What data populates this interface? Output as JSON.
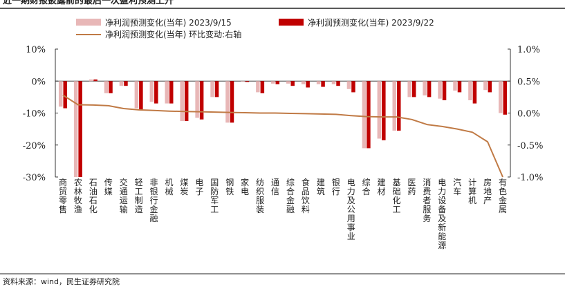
{
  "title": "近一期财报披露前的最后一次盈利预测上升",
  "source": "资料来源：wind，民生证券研究院",
  "colors": {
    "series1": "#e8b7b7",
    "series2": "#c00000",
    "line": "#c07a45",
    "axis": "#333333"
  },
  "chart_data": {
    "type": "bar",
    "categories": [
      "商贸零售",
      "农林牧渔",
      "石油石化",
      "传媒",
      "交通运输",
      "轻工制造",
      "非银行金融",
      "机械",
      "煤炭",
      "电子",
      "国防军工",
      "钢铁",
      "家电",
      "纺织服装",
      "通信",
      "综合金融",
      "食品饮料",
      "建筑",
      "银行",
      "电力及公用事业",
      "综合",
      "建材",
      "基础化工",
      "医药",
      "消费者服务",
      "电力设备及新能源",
      "汽车",
      "计算机",
      "房地产",
      "有色金属"
    ],
    "series": [
      {
        "name": "净利润预测变化(当年) 2023/9/15",
        "type": "bar",
        "axis": "left",
        "values": [
          -8.0,
          -30.0,
          0.5,
          -3.8,
          -1.5,
          -8.5,
          -6.5,
          -7.0,
          -12.5,
          -11.5,
          -5.0,
          -13.0,
          -0.2,
          -3.5,
          -0.8,
          -0.8,
          -1.0,
          -1.0,
          -1.0,
          -2.5,
          -21.0,
          -18.0,
          -15.5,
          -5.0,
          -4.5,
          -5.5,
          -3.0,
          -6.0,
          -2.8,
          -10.0
        ]
      },
      {
        "name": "净利润预测变化(当年) 2023/9/22",
        "type": "bar",
        "axis": "left",
        "values": [
          -8.5,
          -30.0,
          0.5,
          -3.8,
          -1.5,
          -9.0,
          -7.0,
          -7.0,
          -12.5,
          -12.0,
          -5.0,
          -13.0,
          -0.3,
          -3.8,
          -1.0,
          -1.5,
          -2.0,
          -1.8,
          -1.5,
          -3.5,
          -21.0,
          -18.5,
          -15.5,
          -5.0,
          -5.0,
          -6.0,
          -3.5,
          -7.0,
          -3.5,
          -10.5
        ]
      },
      {
        "name": "净利润预测变化(当年) 环比变动:右轴",
        "type": "line",
        "axis": "right",
        "values": [
          0.28,
          0.13,
          0.125,
          0.115,
          0.07,
          0.05,
          0.04,
          0.03,
          0.025,
          0.02,
          0.015,
          0.01,
          0.005,
          0.0,
          0.0,
          -0.005,
          -0.01,
          -0.015,
          -0.02,
          -0.04,
          -0.055,
          -0.06,
          -0.06,
          -0.1,
          -0.18,
          -0.21,
          -0.25,
          -0.3,
          -0.45,
          -1.0
        ]
      }
    ],
    "y_left": {
      "ylim": [
        -30,
        10
      ],
      "ticks": [
        10,
        0,
        -10,
        -20,
        -30
      ],
      "tick_labels": [
        "10%",
        "0%",
        "-10%",
        "-20%",
        "-30%"
      ]
    },
    "y_right": {
      "ylim": [
        -1.0,
        1.0
      ],
      "ticks": [
        1.0,
        0.5,
        0.0,
        -0.5,
        -1.0
      ],
      "tick_labels": [
        "1.0%",
        "0.5%",
        "0.0%",
        "-0.5%",
        "-1.0%"
      ]
    },
    "grid": false,
    "legend_position": "top"
  }
}
